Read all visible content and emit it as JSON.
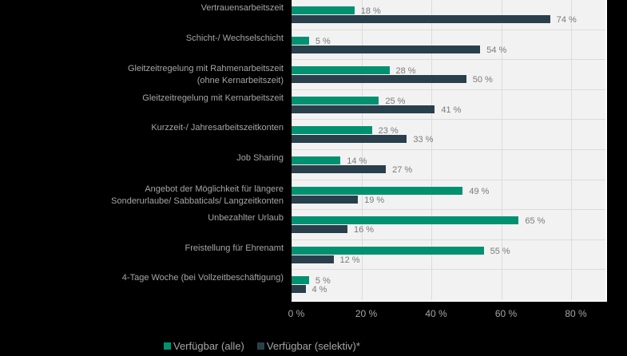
{
  "chart_data": {
    "type": "bar",
    "orientation": "horizontal",
    "title": "",
    "xlabel": "",
    "ylabel": "",
    "xlim": [
      0,
      90
    ],
    "grid": true,
    "legend_position": "bottom",
    "categories": [
      "Vertrauensarbeitszeit",
      "Schicht-/ Wechselschicht",
      "Gleitzeitregelung mit Rahmenarbeitszeit (ohne Kernarbeitszeit)",
      "Gleitzeitregelung mit Kernarbeitszeit",
      "Kurzzeit-/ Jahresarbeitszeitkonten",
      "Job Sharing",
      "Angebot der Möglichkeit für längere Sonderurlaube/ Sabbaticals/ Langzeitkonten",
      "Unbezahlter Urlaub",
      "Freistellung für Ehrenamt",
      "4-Tage Woche (bei Vollzeitbeschäftigung)"
    ],
    "series": [
      {
        "name": "Verfügbar (alle)",
        "color": "#009170",
        "values": [
          18,
          5,
          28,
          25,
          23,
          14,
          49,
          65,
          55,
          5
        ]
      },
      {
        "name": "Verfügbar (selektiv)*",
        "color": "#2a3f4c",
        "values": [
          74,
          54,
          50,
          41,
          33,
          27,
          19,
          16,
          12,
          4
        ]
      }
    ],
    "x_ticks": [
      "0 %",
      "20 %",
      "40 %",
      "60 %",
      "80 %"
    ]
  },
  "labels": {
    "cat0": [
      "Vertrauensarbeitszeit"
    ],
    "cat1": [
      "Schicht-/ Wechselschicht"
    ],
    "cat2": [
      "Gleitzeitregelung mit Rahmenarbeitszeit",
      "(ohne Kernarbeitszeit)"
    ],
    "cat3": [
      "Gleitzeitregelung mit Kernarbeitszeit"
    ],
    "cat4": [
      "Kurzzeit-/ Jahresarbeitszeitkonten"
    ],
    "cat5": [
      "Job Sharing"
    ],
    "cat6": [
      "Angebot der Möglichkeit für längere",
      "Sonderurlaube/ Sabbaticals/ Langzeitkonten"
    ],
    "cat7": [
      "Unbezahlter Urlaub"
    ],
    "cat8": [
      "Freistellung für Ehrenamt"
    ],
    "cat9": [
      "4-Tage Woche (bei Vollzeitbeschäftigung)"
    ]
  },
  "legend": {
    "item0": "Verfügbar (alle)",
    "item1": "Verfügbar (selektiv)*"
  },
  "value_suffix": " %"
}
